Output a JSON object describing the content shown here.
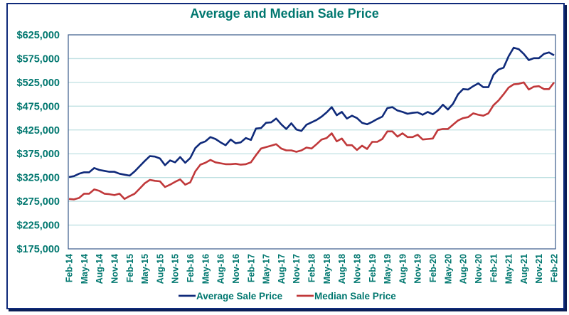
{
  "chart_data": {
    "type": "line",
    "title": "Average and Median Sale Price",
    "xlabel": "",
    "ylabel": "",
    "ylim": [
      175000,
      625000
    ],
    "yticks": [
      175000,
      225000,
      275000,
      325000,
      375000,
      425000,
      475000,
      525000,
      575000,
      625000
    ],
    "ytick_labels": [
      "$175,000",
      "$225,000",
      "$275,000",
      "$325,000",
      "$375,000",
      "$425,000",
      "$475,000",
      "$525,000",
      "$575,000",
      "$625,000"
    ],
    "grid": true,
    "legend_position": "bottom",
    "x_start": "Feb-14",
    "x_end": "Feb-22",
    "xtick_labels": [
      "Feb-14",
      "May-14",
      "Aug-14",
      "Nov-14",
      "Feb-15",
      "May-15",
      "Aug-15",
      "Nov-15",
      "Feb-16",
      "May-16",
      "Aug-16",
      "Nov-16",
      "Feb-17",
      "May-17",
      "Aug-17",
      "Nov-17",
      "Feb-18",
      "May-18",
      "Aug-18",
      "Nov-18",
      "Feb-19",
      "May-19",
      "Aug-19",
      "Nov-19",
      "Feb-20",
      "May-20",
      "Aug-20",
      "Nov-20",
      "Feb-21",
      "May-21",
      "Aug-21",
      "Nov-21",
      "Feb-22"
    ],
    "xtick_every_n_months": 3,
    "series": [
      {
        "name": "Average Sale Price",
        "color": "#0f2a7a",
        "values": [
          326000,
          328000,
          333000,
          336000,
          336000,
          345000,
          341000,
          339000,
          337000,
          337000,
          333000,
          331000,
          329000,
          338000,
          349000,
          360000,
          370000,
          369000,
          365000,
          351000,
          361000,
          357000,
          368000,
          356000,
          366000,
          387000,
          397000,
          401000,
          410000,
          406000,
          399000,
          393000,
          405000,
          397000,
          399000,
          408000,
          404000,
          428000,
          429000,
          440000,
          441000,
          449000,
          437000,
          427000,
          439000,
          426000,
          423000,
          436000,
          441000,
          446000,
          453000,
          462000,
          473000,
          456000,
          463000,
          449000,
          455000,
          450000,
          440000,
          437000,
          442000,
          448000,
          453000,
          471000,
          473000,
          466000,
          463000,
          459000,
          461000,
          462000,
          457000,
          463000,
          458000,
          466000,
          478000,
          468000,
          480000,
          500000,
          511000,
          510000,
          517000,
          523000,
          515000,
          515000,
          541000,
          552000,
          556000,
          580000,
          598000,
          595000,
          585000,
          572000,
          576000,
          576000,
          585000,
          588000,
          582000
        ]
      },
      {
        "name": "Median Sale Price",
        "color": "#c0383a",
        "values": [
          280000,
          279000,
          282000,
          291000,
          291000,
          300000,
          297000,
          291000,
          290000,
          288000,
          291000,
          280000,
          286000,
          291000,
          302000,
          313000,
          320000,
          318000,
          317000,
          305000,
          310000,
          316000,
          321000,
          310000,
          315000,
          338000,
          352000,
          356000,
          362000,
          357000,
          355000,
          353000,
          353000,
          354000,
          352000,
          353000,
          357000,
          372000,
          386000,
          389000,
          392000,
          395000,
          386000,
          382000,
          382000,
          379000,
          382000,
          388000,
          386000,
          395000,
          405000,
          408000,
          418000,
          401000,
          407000,
          393000,
          393000,
          383000,
          392000,
          385000,
          400000,
          400000,
          406000,
          422000,
          422000,
          411000,
          418000,
          410000,
          410000,
          415000,
          405000,
          406000,
          407000,
          425000,
          427000,
          427000,
          436000,
          445000,
          450000,
          452000,
          460000,
          457000,
          455000,
          460000,
          477000,
          487000,
          500000,
          514000,
          521000,
          522000,
          525000,
          510000,
          516000,
          517000,
          511000,
          511000,
          525000
        ]
      }
    ]
  }
}
